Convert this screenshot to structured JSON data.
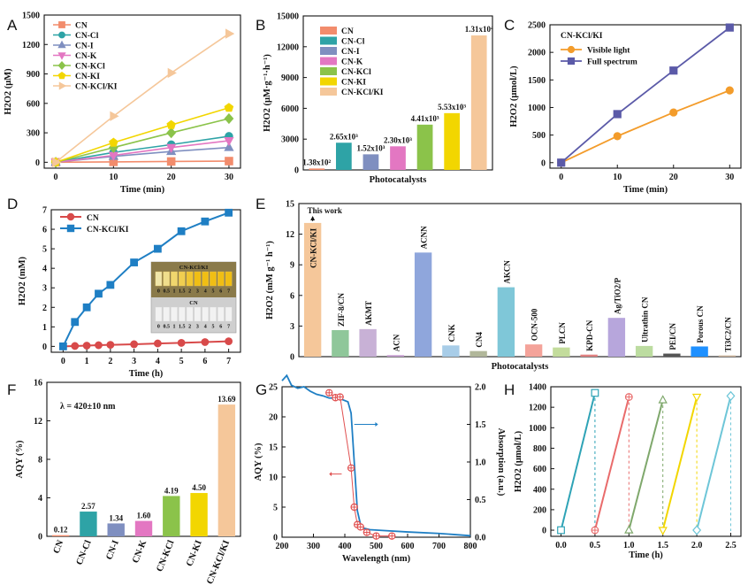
{
  "panel_labels": [
    "A",
    "B",
    "C",
    "D",
    "E",
    "F",
    "G",
    "H"
  ],
  "chart_data": [
    {
      "id": "A",
      "type": "line",
      "xlabel": "Time (min)",
      "ylabel": "H2O2 (μM)",
      "xlim": [
        -2,
        32
      ],
      "ylim": [
        -60,
        1500
      ],
      "xticks": [
        0,
        10,
        20,
        30
      ],
      "yticks": [
        0,
        300,
        600,
        900,
        1200,
        1500
      ],
      "x": [
        0,
        10,
        20,
        30
      ],
      "series": [
        {
          "name": "CN",
          "values": [
            0,
            4,
            8,
            12
          ],
          "color": "#f28c6c",
          "marker": "square"
        },
        {
          "name": "CN-Cl",
          "values": [
            0,
            100,
            180,
            265
          ],
          "color": "#2ea3a6",
          "marker": "circle"
        },
        {
          "name": "CN-I",
          "values": [
            0,
            60,
            110,
            150
          ],
          "color": "#7f8fc0",
          "marker": "triangle"
        },
        {
          "name": "CN-K",
          "values": [
            0,
            70,
            150,
            220
          ],
          "color": "#e377c2",
          "marker": "triangle-down"
        },
        {
          "name": "CN-KCl",
          "values": [
            0,
            150,
            300,
            445
          ],
          "color": "#8bc34a",
          "marker": "diamond"
        },
        {
          "name": "CN-KI",
          "values": [
            0,
            200,
            380,
            555
          ],
          "color": "#f2d600",
          "marker": "pentagon"
        },
        {
          "name": "CN-KCl/KI",
          "values": [
            0,
            470,
            910,
            1310
          ],
          "color": "#f5c79a",
          "marker": "triangle-right"
        }
      ]
    },
    {
      "id": "B",
      "type": "bar",
      "xlabel": "Photocatalysts",
      "ylabel": "H2O2 (μM·g⁻¹·h⁻¹)",
      "ylim": [
        0,
        15000
      ],
      "yticks": [
        0,
        3000,
        6000,
        9000,
        12000,
        15000
      ],
      "categories": [
        "CN",
        "CN-Cl",
        "CN-I",
        "CN-K",
        "CN-KCl",
        "CN-KI",
        "CN-KCl/KI"
      ],
      "values": [
        138,
        2650,
        1520,
        2300,
        4410,
        5530,
        13100
      ],
      "labels": [
        "1.38x10²",
        "2.65x10³",
        "1.52x10³",
        "2.30x10³",
        "4.41x10³",
        "5.53x10³",
        "1.31x10⁴"
      ],
      "colors": [
        "#f28c6c",
        "#2ea3a6",
        "#7f8fc0",
        "#e377c2",
        "#8bc34a",
        "#f2d600",
        "#f5c79a"
      ]
    },
    {
      "id": "C",
      "type": "line",
      "title": "CN-KCl/KI",
      "xlabel": "Time (min)",
      "ylabel": "H2O2 (μmol/L)",
      "xlim": [
        -2,
        32
      ],
      "ylim": [
        -100,
        2500
      ],
      "xticks": [
        0,
        10,
        20,
        30
      ],
      "yticks": [
        0,
        500,
        1000,
        1500,
        2000,
        2500
      ],
      "x": [
        0,
        10,
        20,
        30
      ],
      "series": [
        {
          "name": "Visible light",
          "values": [
            0,
            480,
            910,
            1310
          ],
          "color": "#f39c2b",
          "marker": "circle"
        },
        {
          "name": "Full spectrum",
          "values": [
            0,
            880,
            1670,
            2450
          ],
          "color": "#5b5aa8",
          "marker": "square"
        }
      ]
    },
    {
      "id": "D",
      "type": "line",
      "xlabel": "Time (h)",
      "ylabel": "H2O2 (mM)",
      "xlim": [
        -0.5,
        7.5
      ],
      "ylim": [
        -0.3,
        7
      ],
      "xticks": [
        0,
        1,
        2,
        3,
        4,
        5,
        6,
        7
      ],
      "yticks": [
        0,
        1,
        2,
        3,
        4,
        5,
        6,
        7
      ],
      "series": [
        {
          "name": "CN",
          "x": [
            0,
            0.5,
            1,
            1.5,
            2,
            3,
            4,
            5,
            6,
            7
          ],
          "values": [
            0,
            0.02,
            0.04,
            0.06,
            0.08,
            0.11,
            0.15,
            0.18,
            0.22,
            0.26
          ],
          "color": "#d84a4a",
          "marker": "circle"
        },
        {
          "name": "CN-KCl/KI",
          "x": [
            0,
            0.5,
            1,
            1.5,
            2,
            3,
            4,
            5,
            6,
            7
          ],
          "values": [
            0,
            1.25,
            2.0,
            2.7,
            3.15,
            4.3,
            5.0,
            5.9,
            6.4,
            6.85
          ],
          "color": "#1f7fc4",
          "marker": "square"
        }
      ],
      "inset": {
        "top_label": "CN-KCl/KI",
        "bottom_label": "CN",
        "vial_labels": [
          "0",
          "0.5",
          "1",
          "1.5",
          "2",
          "3",
          "4",
          "5",
          "6",
          "7"
        ]
      }
    },
    {
      "id": "E",
      "type": "bar",
      "xlabel": "Photocatalysts",
      "ylabel": "H2O2 (mM g⁻¹ h⁻¹)",
      "ylim": [
        0,
        15
      ],
      "yticks": [
        0,
        3,
        6,
        9,
        12,
        15
      ],
      "annotation": "This work",
      "categories": [
        "CN-KCl/KI",
        "ZIF-8/CN",
        "AKMT",
        "ACN",
        "ACNN",
        "CNK",
        "CN4",
        "AKCN",
        "OCN-500",
        "PLCN",
        "KPD-CN",
        "Ag/TiO2/P",
        "Ultrathin CN",
        "PEI/CN",
        "Porous CN",
        "Ti3C2/CN"
      ],
      "values": [
        13.1,
        2.6,
        2.7,
        0.15,
        10.2,
        1.1,
        0.55,
        6.8,
        1.2,
        0.9,
        0.2,
        3.8,
        1.05,
        0.3,
        1.0,
        0.12
      ],
      "colors": [
        "#f5c79a",
        "#8fc79a",
        "#c8b1d6",
        "#c59bd0",
        "#8fa6dc",
        "#a8cde8",
        "#b1b79a",
        "#7fc7d8",
        "#f4a39a",
        "#c3dc9c",
        "#e08080",
        "#b7a6dc",
        "#bcdca0",
        "#555555",
        "#1e90ff",
        "#cbb39a"
      ]
    },
    {
      "id": "F",
      "type": "bar",
      "xlabel": "",
      "ylabel": "AQY (%)",
      "note": "λ = 420±10 nm",
      "ylim": [
        0,
        16
      ],
      "yticks": [
        0,
        4,
        8,
        12,
        16
      ],
      "categories": [
        "CN",
        "CN-Cl",
        "CN-I",
        "CN-K",
        "CN-KCl",
        "CN-KI",
        "CN-KCl/KI"
      ],
      "values": [
        0.12,
        2.57,
        1.34,
        1.6,
        4.19,
        4.5,
        13.69
      ],
      "labels": [
        "0.12",
        "2.57",
        "1.34",
        "1.60",
        "4.19",
        "4.50",
        "13.69"
      ],
      "colors": [
        "#f28c6c",
        "#2ea3a6",
        "#7f8fc0",
        "#e377c2",
        "#8bc34a",
        "#f2d600",
        "#f5c79a"
      ]
    },
    {
      "id": "G",
      "type": "line",
      "xlabel": "Wavelength (nm)",
      "ylabel": "AQY (%)",
      "ylabel_right": "Absorption (a.u.)",
      "xlim": [
        200,
        800
      ],
      "ylim": [
        0,
        25
      ],
      "ylim_right": [
        0,
        2.0
      ],
      "xticks": [
        200,
        300,
        400,
        500,
        600,
        700,
        800
      ],
      "yticks": [
        0,
        5,
        10,
        15,
        20,
        25
      ],
      "yticks_right": [
        0.0,
        0.5,
        1.0,
        1.5,
        2.0
      ],
      "yticks_right_labels": [
        "0.0",
        "0.5",
        "1.0",
        "1.5",
        "2.0"
      ],
      "aqy": {
        "x": [
          350,
          370,
          385,
          420,
          430,
          440,
          450,
          470,
          500,
          550
        ],
        "values": [
          24,
          23.2,
          23.3,
          11.5,
          5,
          2.1,
          1.7,
          0.8,
          0.2,
          0.2
        ],
        "color": "#e05050"
      },
      "absorption": {
        "x": [
          200,
          215,
          230,
          250,
          270,
          290,
          310,
          330,
          350,
          380,
          410,
          420,
          430,
          440,
          450,
          460,
          480,
          520,
          600,
          700,
          800
        ],
        "values": [
          2.08,
          2.15,
          2.02,
          1.98,
          2.0,
          1.94,
          1.9,
          1.88,
          1.85,
          1.85,
          1.8,
          1.65,
          1.0,
          0.35,
          0.17,
          0.12,
          0.1,
          0.09,
          0.07,
          0.05,
          0.02
        ],
        "color": "#1f7fc4"
      }
    },
    {
      "id": "H",
      "type": "line",
      "xlabel": "Time (h)",
      "ylabel": "H2O2 (μmol/L)",
      "xlim": [
        -0.15,
        2.65
      ],
      "ylim": [
        -60,
        1400
      ],
      "xticks": [
        0.0,
        0.5,
        1.0,
        1.5,
        2.0,
        2.5
      ],
      "yticks": [
        0,
        200,
        400,
        600,
        800,
        1000,
        1200,
        1400
      ],
      "xtick_labels": [
        "0.0",
        "0.5",
        "1.0",
        "1.5",
        "2.0",
        "2.5"
      ],
      "cycles": [
        {
          "x": [
            0.0,
            0.5
          ],
          "values": [
            0,
            1340
          ],
          "color": "#2ea3b6",
          "marker": "square"
        },
        {
          "x": [
            0.5,
            1.0
          ],
          "values": [
            0,
            1300
          ],
          "color": "#e96b6b",
          "marker": "circle-plus"
        },
        {
          "x": [
            1.0,
            1.5
          ],
          "values": [
            0,
            1270
          ],
          "color": "#7fa86c",
          "marker": "triangle"
        },
        {
          "x": [
            1.5,
            2.0
          ],
          "values": [
            0,
            1300
          ],
          "color": "#f2d600",
          "marker": "triangle-down"
        },
        {
          "x": [
            2.0,
            2.5
          ],
          "values": [
            0,
            1310
          ],
          "color": "#6ec6d8",
          "marker": "diamond"
        }
      ]
    }
  ]
}
